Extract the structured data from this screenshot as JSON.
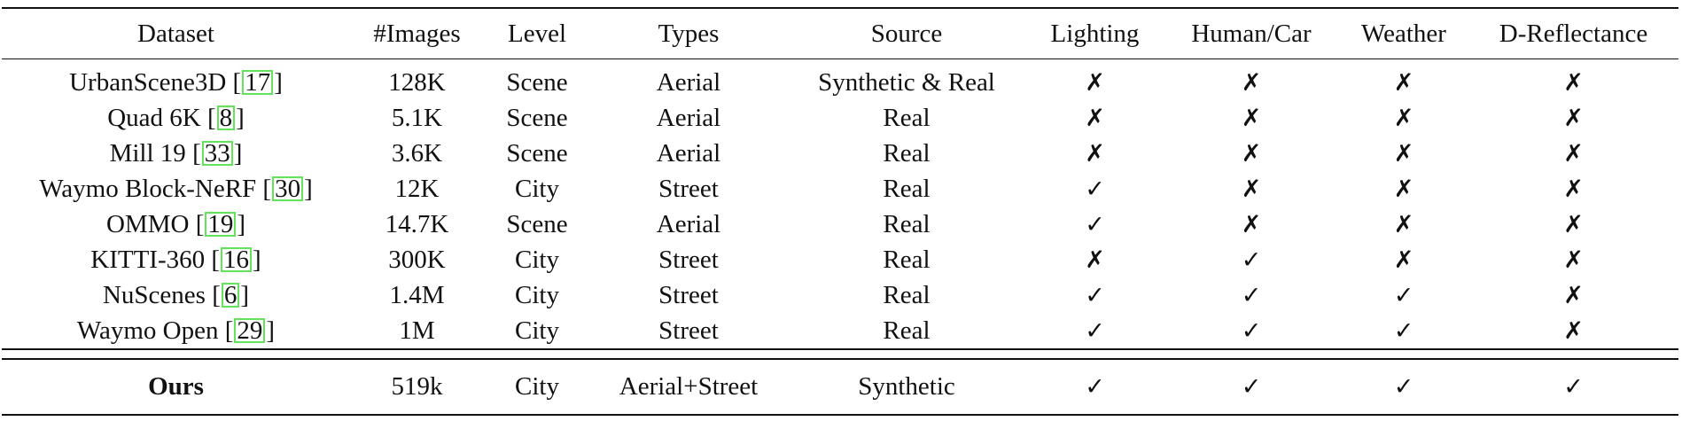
{
  "table": {
    "headers": [
      "Dataset",
      "#Images",
      "Level",
      "Types",
      "Source",
      "Lighting",
      "Human/Car",
      "Weather",
      "D-Reflectance"
    ],
    "rows": [
      {
        "dataset": "UrbanScene3D",
        "cite": "17",
        "images": "128K",
        "level": "Scene",
        "types": "Aerial",
        "source": "Synthetic & Real",
        "lighting": "✗",
        "human_car": "✗",
        "weather": "✗",
        "reflectance": "✗"
      },
      {
        "dataset": "Quad 6K",
        "cite": "8",
        "images": "5.1K",
        "level": "Scene",
        "types": "Aerial",
        "source": "Real",
        "lighting": "✗",
        "human_car": "✗",
        "weather": "✗",
        "reflectance": "✗"
      },
      {
        "dataset": "Mill 19",
        "cite": "33",
        "images": "3.6K",
        "level": "Scene",
        "types": "Aerial",
        "source": "Real",
        "lighting": "✗",
        "human_car": "✗",
        "weather": "✗",
        "reflectance": "✗"
      },
      {
        "dataset": "Waymo Block-NeRF",
        "cite": "30",
        "images": "12K",
        "level": "City",
        "types": "Street",
        "source": "Real",
        "lighting": "✓",
        "human_car": "✗",
        "weather": "✗",
        "reflectance": "✗"
      },
      {
        "dataset": "OMMO",
        "cite": "19",
        "images": "14.7K",
        "level": "Scene",
        "types": "Aerial",
        "source": "Real",
        "lighting": "✓",
        "human_car": "✗",
        "weather": "✗",
        "reflectance": "✗"
      },
      {
        "dataset": "KITTI-360",
        "cite": "16",
        "images": "300K",
        "level": "City",
        "types": "Street",
        "source": "Real",
        "lighting": "✗",
        "human_car": "✓",
        "weather": "✗",
        "reflectance": "✗"
      },
      {
        "dataset": "NuScenes",
        "cite": "6",
        "images": "1.4M",
        "level": "City",
        "types": "Street",
        "source": "Real",
        "lighting": "✓",
        "human_car": "✓",
        "weather": "✓",
        "reflectance": "✗"
      },
      {
        "dataset": "Waymo Open",
        "cite": "29",
        "images": "1M",
        "level": "City",
        "types": "Street",
        "source": "Real",
        "lighting": "✓",
        "human_car": "✓",
        "weather": "✓",
        "reflectance": "✗"
      }
    ],
    "ours": {
      "dataset": "Ours",
      "images": "519k",
      "level": "City",
      "types": "Aerial+Street",
      "source": "Synthetic",
      "lighting": "✓",
      "human_car": "✓",
      "weather": "✓",
      "reflectance": "✓"
    }
  },
  "colors": {
    "citation_box": "#62e35b",
    "rules": "#111111"
  }
}
